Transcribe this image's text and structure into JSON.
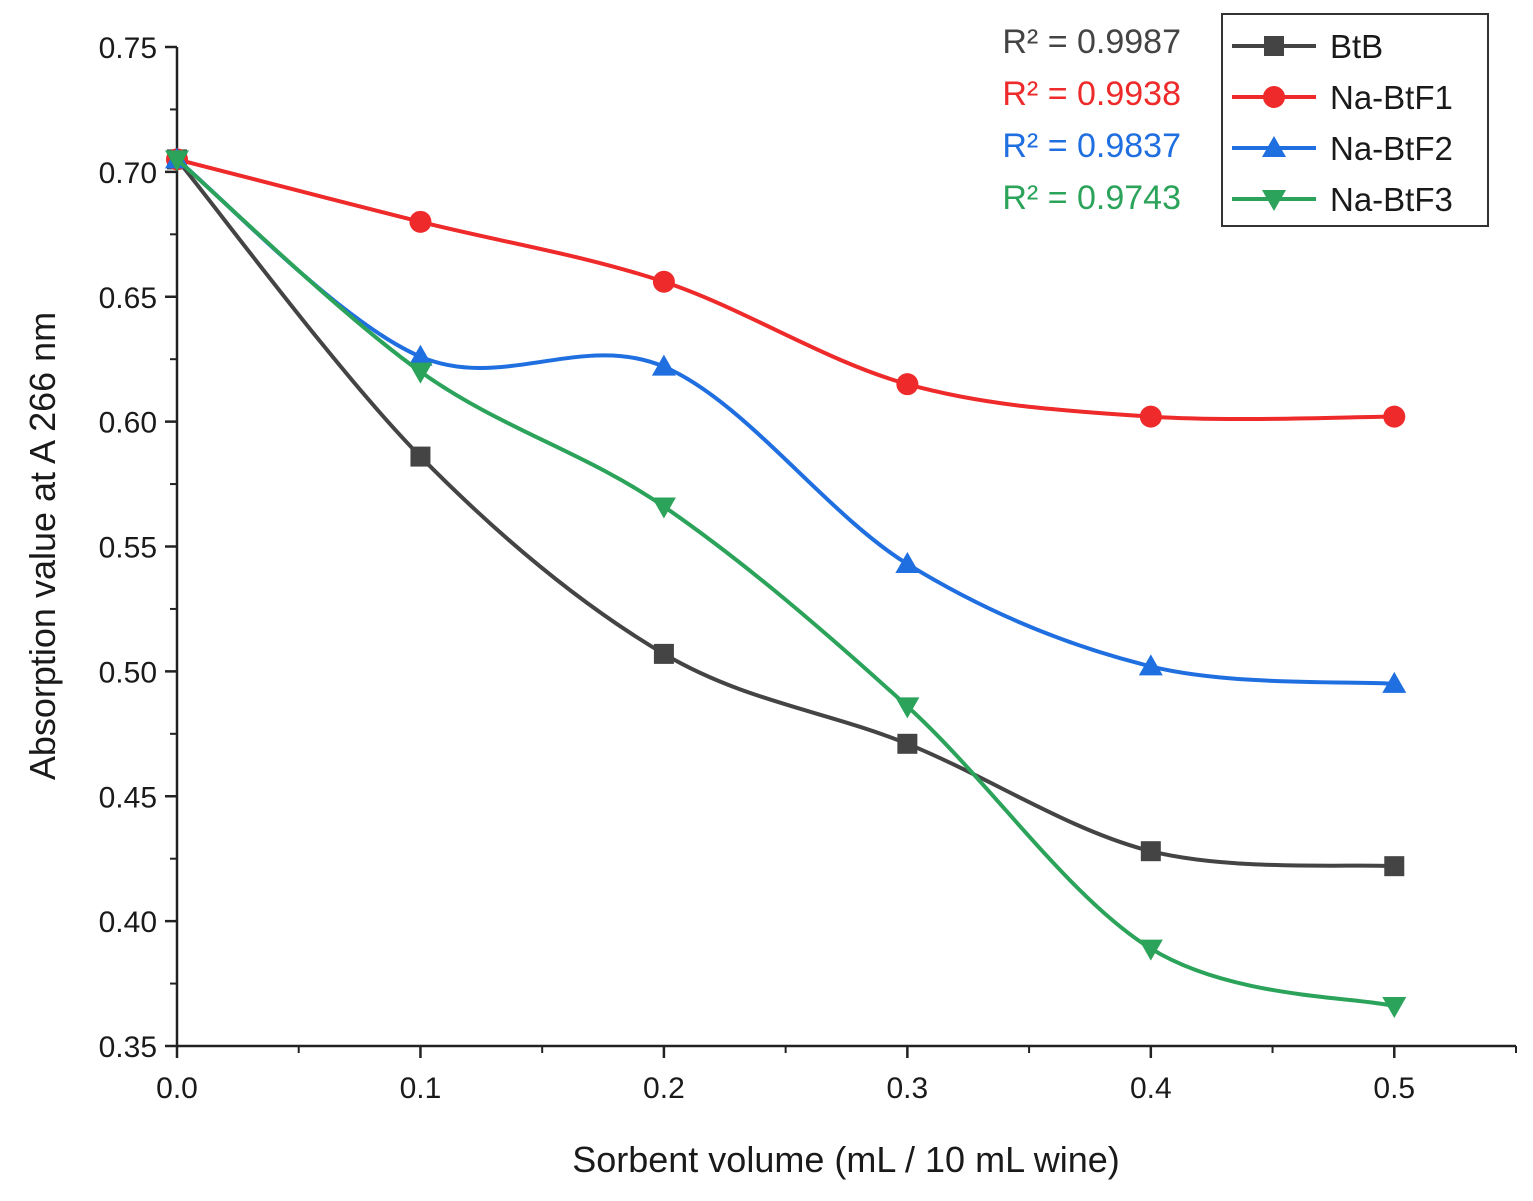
{
  "chart_data": {
    "type": "line",
    "title": "",
    "xlabel": "Sorbent volume (mL / 10 mL wine)",
    "ylabel": "Absorption value at A 266 nm",
    "xlim": [
      0.0,
      0.55
    ],
    "ylim": [
      0.35,
      0.75
    ],
    "x_ticks": [
      "0.0",
      "0.1",
      "0.2",
      "0.3",
      "0.4",
      "0.5"
    ],
    "y_ticks": [
      "0.35",
      "0.40",
      "0.45",
      "0.50",
      "0.55",
      "0.60",
      "0.65",
      "0.70",
      "0.75"
    ],
    "x": [
      0.0,
      0.1,
      0.2,
      0.3,
      0.4,
      0.5
    ],
    "grid": false,
    "legend_position": "top-right",
    "series": [
      {
        "name": "BtB",
        "color": "#444444",
        "marker": "square",
        "values": [
          0.705,
          0.586,
          0.507,
          0.471,
          0.428,
          0.422
        ],
        "r2_label": "R² = 0.9987"
      },
      {
        "name": "Na-BtF1",
        "color": "#ee2a2a",
        "marker": "circle",
        "values": [
          0.705,
          0.68,
          0.656,
          0.615,
          0.602,
          0.602
        ],
        "r2_label": "R² = 0.9938"
      },
      {
        "name": "Na-BtF2",
        "color": "#1f6fe0",
        "marker": "triangle-up",
        "values": [
          0.705,
          0.626,
          0.622,
          0.543,
          0.502,
          0.495
        ],
        "r2_label": "R² = 0.9837"
      },
      {
        "name": "Na-BtF3",
        "color": "#2ca35a",
        "marker": "triangle-down",
        "values": [
          0.705,
          0.62,
          0.566,
          0.486,
          0.389,
          0.366
        ],
        "r2_label": "R² = 0.9743"
      }
    ]
  }
}
